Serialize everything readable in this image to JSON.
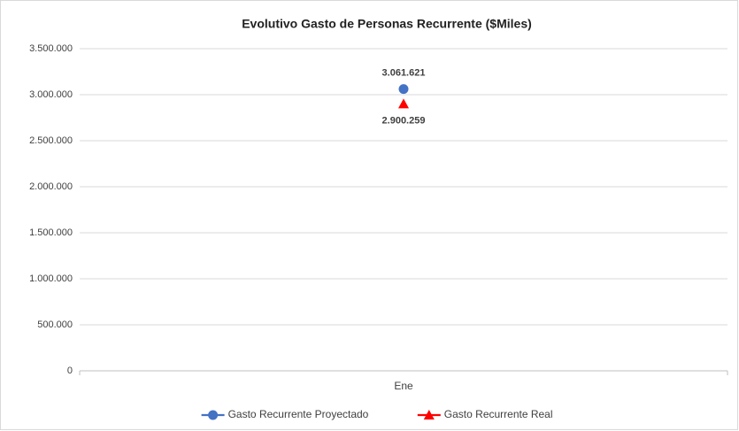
{
  "chart_data": {
    "type": "line",
    "title": "Evolutivo Gasto de Personas Recurrente ($Miles)",
    "categories": [
      "Ene"
    ],
    "series": [
      {
        "name": "Gasto Recurrente Proyectado",
        "color": "#4472c4",
        "marker": "circle",
        "values": [
          3061621
        ],
        "value_labels": [
          "3.061.621"
        ]
      },
      {
        "name": "Gasto Recurrente Real",
        "color": "#ff0000",
        "marker": "triangle",
        "values": [
          2900259
        ],
        "value_labels": [
          "2.900.259"
        ]
      }
    ],
    "ylim": [
      0,
      3500000
    ],
    "yticks": [
      0,
      {
        "value": 500000,
        "label": "500.000"
      },
      {
        "value": 1000000,
        "label": "1.000.000"
      },
      {
        "value": 1500000,
        "label": "1.500.000"
      },
      {
        "value": 2000000,
        "label": "2.000.000"
      },
      {
        "value": 2500000,
        "label": "2.500.000"
      },
      {
        "value": 3000000,
        "label": "3.000.000"
      },
      {
        "value": 3500000,
        "label": "3.500.000"
      }
    ],
    "grid": true,
    "legend": "bottom"
  }
}
